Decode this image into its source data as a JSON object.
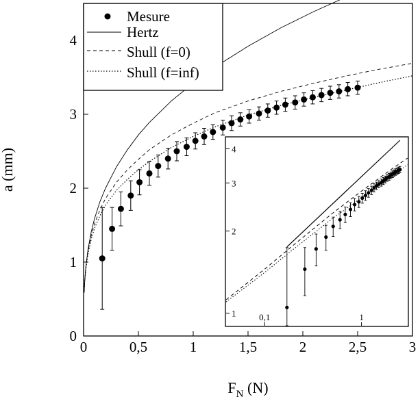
{
  "chart_data": [
    {
      "type": "scatter",
      "title": "",
      "xlabel_main": "F",
      "xlabel_sub": "N",
      "xlabel_unit": " (N)",
      "ylabel": "a (mm)",
      "xlim": [
        0,
        3
      ],
      "ylim": [
        0,
        4.5
      ],
      "xticks": [
        0,
        0.5,
        1,
        1.5,
        2,
        2.5,
        3
      ],
      "xtick_labels": [
        "0",
        "0,5",
        "1",
        "1,5",
        "2",
        "2,5",
        "3"
      ],
      "yticks": [
        0,
        1,
        2,
        3,
        4
      ],
      "ytick_labels": [
        "0",
        "1",
        "2",
        "3",
        "4"
      ],
      "grid": false,
      "legend_position": "top-left",
      "legend": [
        "Mesure",
        "Hertz",
        "Shull (f=0)",
        "Shull (f=inf)"
      ],
      "series": [
        {
          "name": "Mesure",
          "style": "points-with-errorbars",
          "x": [
            0.17,
            0.26,
            0.34,
            0.43,
            0.51,
            0.6,
            0.68,
            0.77,
            0.85,
            0.94,
            1.02,
            1.1,
            1.18,
            1.27,
            1.35,
            1.43,
            1.51,
            1.6,
            1.68,
            1.76,
            1.84,
            1.93,
            2.01,
            2.09,
            2.17,
            2.25,
            2.33,
            2.41,
            2.5
          ],
          "y": [
            1.05,
            1.45,
            1.72,
            1.9,
            2.08,
            2.2,
            2.3,
            2.4,
            2.5,
            2.56,
            2.64,
            2.7,
            2.76,
            2.82,
            2.88,
            2.93,
            2.97,
            3.01,
            3.05,
            3.09,
            3.13,
            3.16,
            3.2,
            3.23,
            3.26,
            3.29,
            3.31,
            3.34,
            3.36
          ],
          "err": [
            0.69,
            0.29,
            0.23,
            0.2,
            0.17,
            0.16,
            0.15,
            0.14,
            0.13,
            0.12,
            0.11,
            0.11,
            0.1,
            0.1,
            0.1,
            0.09,
            0.09,
            0.09,
            0.09,
            0.09,
            0.09,
            0.09,
            0.09,
            0.09,
            0.09,
            0.09,
            0.09,
            0.09,
            0.09
          ]
        },
        {
          "name": "Hertz",
          "style": "solid",
          "x": [
            0.005,
            0.01,
            0.02,
            0.04,
            0.07,
            0.1,
            0.15,
            0.2,
            0.3,
            0.4,
            0.5,
            0.6,
            0.8,
            1.0,
            1.2,
            1.5,
            1.8,
            2.1,
            2.4,
            2.5
          ],
          "y": [
            0.59,
            0.74,
            0.93,
            1.17,
            1.41,
            1.59,
            1.82,
            2.0,
            2.29,
            2.52,
            2.72,
            2.89,
            3.18,
            3.42,
            3.64,
            3.92,
            4.17,
            4.39,
            4.59,
            4.65
          ]
        },
        {
          "name": "Shull (f=0)",
          "style": "dashed",
          "x": [
            0.005,
            0.01,
            0.02,
            0.04,
            0.07,
            0.1,
            0.15,
            0.2,
            0.3,
            0.4,
            0.5,
            0.6,
            0.8,
            1.0,
            1.2,
            1.5,
            1.8,
            2.1,
            2.4,
            2.7,
            3.0
          ],
          "y": [
            0.59,
            0.74,
            0.92,
            1.14,
            1.36,
            1.52,
            1.71,
            1.86,
            2.08,
            2.25,
            2.39,
            2.52,
            2.72,
            2.88,
            3.02,
            3.18,
            3.31,
            3.42,
            3.52,
            3.61,
            3.69
          ]
        },
        {
          "name": "Shull (f=inf)",
          "style": "dotted",
          "x": [
            0.005,
            0.01,
            0.02,
            0.04,
            0.07,
            0.1,
            0.15,
            0.2,
            0.3,
            0.4,
            0.5,
            0.6,
            0.8,
            1.0,
            1.2,
            1.5,
            1.8,
            2.1,
            2.4,
            2.7,
            3.0
          ],
          "y": [
            0.59,
            0.73,
            0.9,
            1.11,
            1.31,
            1.46,
            1.63,
            1.77,
            1.97,
            2.12,
            2.25,
            2.36,
            2.55,
            2.7,
            2.83,
            2.99,
            3.12,
            3.23,
            3.33,
            3.43,
            3.52
          ]
        }
      ]
    },
    {
      "type": "scatter",
      "title": "",
      "inset": true,
      "scale": "log-log",
      "xlim": [
        0.04,
        3
      ],
      "ylim": [
        0.9,
        4.4
      ],
      "xticks": [
        0.1,
        1
      ],
      "xtick_labels": [
        "0,1",
        "1"
      ],
      "yticks": [
        1,
        2,
        3,
        4
      ],
      "ytick_labels": [
        "1",
        "2",
        "3",
        "4"
      ],
      "grid": false,
      "series": [
        {
          "name": "Mesure",
          "style": "points-with-errorbars",
          "x": [
            0.17,
            0.26,
            0.34,
            0.43,
            0.51,
            0.6,
            0.68,
            0.77,
            0.85,
            0.94,
            1.02,
            1.1,
            1.18,
            1.27,
            1.35,
            1.43,
            1.51,
            1.6,
            1.68,
            1.76,
            1.84,
            1.93,
            2.01,
            2.09,
            2.17,
            2.25,
            2.33,
            2.41,
            2.5
          ],
          "y": [
            1.05,
            1.45,
            1.72,
            1.9,
            2.08,
            2.2,
            2.3,
            2.4,
            2.5,
            2.56,
            2.64,
            2.7,
            2.76,
            2.82,
            2.88,
            2.93,
            2.97,
            3.01,
            3.05,
            3.09,
            3.13,
            3.16,
            3.2,
            3.23,
            3.26,
            3.29,
            3.31,
            3.34,
            3.36
          ],
          "err": [
            0.69,
            0.29,
            0.23,
            0.2,
            0.17,
            0.16,
            0.15,
            0.14,
            0.13,
            0.12,
            0.11,
            0.11,
            0.1,
            0.1,
            0.1,
            0.09,
            0.09,
            0.09,
            0.09,
            0.09,
            0.09,
            0.09,
            0.09,
            0.09,
            0.09,
            0.09,
            0.09,
            0.09,
            0.09
          ]
        },
        {
          "name": "Hertz",
          "style": "solid",
          "x": [
            0.17,
            2.5
          ],
          "y": [
            1.75,
            4.3
          ]
        },
        {
          "name": "Shull (f=0)",
          "style": "dashed",
          "x": [
            0.04,
            0.1,
            0.2,
            0.5,
            1.0,
            2.0,
            3.0
          ],
          "y": [
            1.12,
            1.45,
            1.78,
            2.32,
            2.8,
            3.35,
            3.7
          ]
        },
        {
          "name": "Shull (f=inf)",
          "style": "dotted",
          "x": [
            0.04,
            0.1,
            0.2,
            0.5,
            1.0,
            2.0,
            3.0
          ],
          "y": [
            1.1,
            1.41,
            1.72,
            2.22,
            2.65,
            3.15,
            3.5
          ]
        }
      ]
    }
  ]
}
